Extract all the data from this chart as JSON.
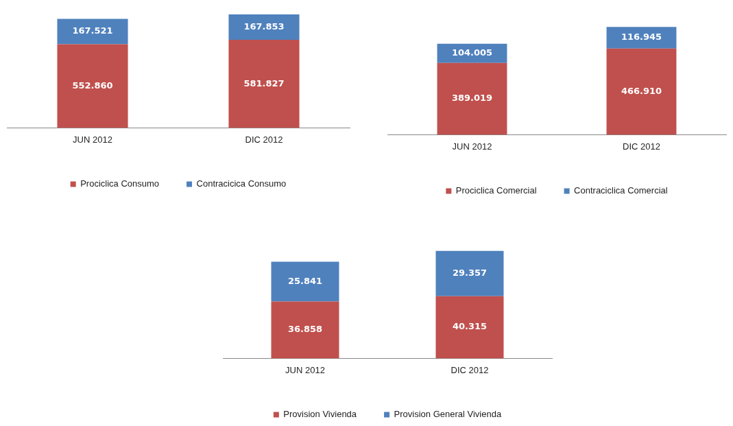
{
  "chart_data": [
    {
      "type": "bar",
      "stacked": true,
      "categories": [
        "JUN 2012",
        "DIC 2012"
      ],
      "legend": "bottom",
      "grid": false,
      "series": [
        {
          "name": "Prociclica Consumo",
          "color": "#c0504d",
          "values": [
            552860,
            581827
          ],
          "value_labels": [
            "552.860",
            "581.827"
          ]
        },
        {
          "name": "Contracicica Consumo",
          "color": "#4f81bd",
          "values": [
            167521,
            167853
          ],
          "value_labels": [
            "167.521",
            "167.853"
          ]
        }
      ]
    },
    {
      "type": "bar",
      "stacked": true,
      "categories": [
        "JUN 2012",
        "DIC 2012"
      ],
      "legend": "bottom",
      "grid": false,
      "series": [
        {
          "name": "Prociclica Comercial",
          "color": "#c0504d",
          "values": [
            389019,
            466910
          ],
          "value_labels": [
            "389.019",
            "466.910"
          ]
        },
        {
          "name": "Contraciclica Comercial",
          "color": "#4f81bd",
          "values": [
            104005,
            116945
          ],
          "value_labels": [
            "104.005",
            "116.945"
          ]
        }
      ]
    },
    {
      "type": "bar",
      "stacked": true,
      "categories": [
        "JUN 2012",
        "DIC 2012"
      ],
      "legend": "bottom",
      "grid": false,
      "series": [
        {
          "name": "Provision Vivienda",
          "color": "#c0504d",
          "values": [
            36858,
            40315
          ],
          "value_labels": [
            "36.858",
            "40.315"
          ]
        },
        {
          "name": "Provision General Vivienda",
          "color": "#4f81bd",
          "values": [
            25841,
            29357
          ],
          "value_labels": [
            "25.841",
            "29.357"
          ]
        }
      ]
    }
  ]
}
